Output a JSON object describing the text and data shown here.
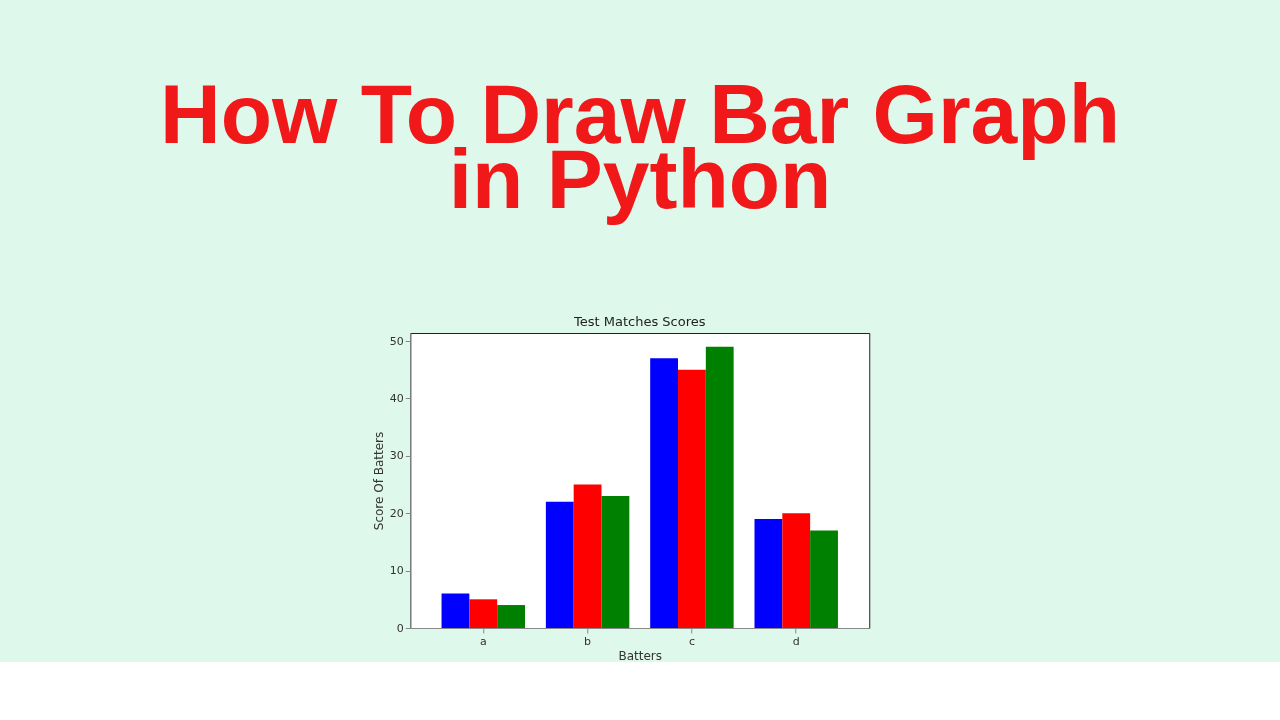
{
  "chart_data": {
    "type": "bar",
    "title": "Test Matches Scores",
    "xlabel": "Batters",
    "ylabel": "Score Of Batters",
    "annotations": [
      "How To Draw Bar Graph",
      "in Python"
    ],
    "categories": [
      "a",
      "b",
      "c",
      "d"
    ],
    "series": [
      {
        "color": "#0000ff",
        "values": [
          6,
          22,
          47,
          19
        ]
      },
      {
        "color": "#ff0000",
        "values": [
          5,
          25,
          45,
          20
        ]
      },
      {
        "color": "#008000",
        "values": [
          4,
          23,
          49,
          17
        ]
      }
    ],
    "ylim": [
      0,
      51.4
    ],
    "yticks": [
      0,
      10,
      20,
      30,
      40,
      50
    ],
    "grid": false,
    "legend": false
  }
}
